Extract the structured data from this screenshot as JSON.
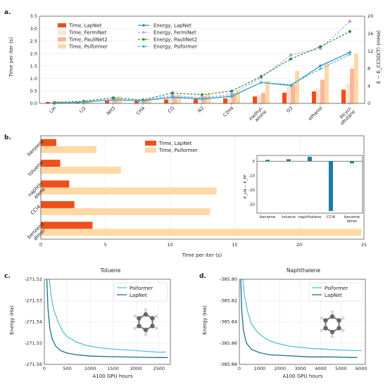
{
  "panel_labels": {
    "a": "a.",
    "b": "b.",
    "c": "c.",
    "d": "d."
  },
  "chart_data": [
    {
      "id": "a",
      "type": "bar",
      "categories": [
        "LiH",
        "Li2",
        "NH3",
        "CH4",
        "CO",
        "N2",
        "C2H4",
        "methyl-\namine",
        "O3",
        "ethanol",
        "bicycl-\nobutane"
      ],
      "ylabel": "Time per iter (s)",
      "ylim": [
        0,
        3.5
      ],
      "yticks": [
        0.0,
        0.5,
        1.0,
        1.5,
        2.0,
        2.5,
        3.0,
        3.5
      ],
      "ylabel_right": "E − E_CCSD(T) (mHa)",
      "ylim_right": [
        0,
        20
      ],
      "yticks_right": [
        0,
        4,
        8,
        12,
        16,
        20
      ],
      "grid": true,
      "bar_series": [
        {
          "name": "Time, LapNet",
          "color": "#ef4f1a",
          "values": [
            0.06,
            0.07,
            0.13,
            0.1,
            0.16,
            0.17,
            0.2,
            0.28,
            0.43,
            0.48,
            0.55
          ]
        },
        {
          "name": "Time, FermiNet",
          "color": "#fde4d6",
          "values": [
            0.07,
            0.09,
            0.18,
            0.14,
            0.25,
            0.26,
            0.33,
            0.34,
            0.68,
            0.6,
            0.8
          ]
        },
        {
          "name": "Time, PauliNet2",
          "color": "#f8b79d",
          "values": [
            0.08,
            0.1,
            0.22,
            0.16,
            0.28,
            0.29,
            0.4,
            0.42,
            0.75,
            0.95,
            1.4
          ]
        },
        {
          "name": "Time, Psiformer",
          "color": "#fed9a6",
          "values": [
            0.1,
            0.13,
            0.28,
            0.2,
            0.36,
            0.38,
            0.47,
            0.9,
            1.3,
            1.62,
            2.0
          ]
        }
      ],
      "line_series": [
        {
          "name": "Energy, LapNet",
          "color": "#2e87c8",
          "style": "solid",
          "marker": "star",
          "values": [
            0.1,
            0.3,
            0.8,
            0.6,
            1.4,
            1.0,
            1.6,
            4.8,
            4.1,
            8.6,
            11.7
          ]
        },
        {
          "name": "Energy, FermiNet",
          "color": "#b7a6dd",
          "style": "dashed",
          "marker": "square",
          "values": [
            0.1,
            0.4,
            0.9,
            0.7,
            1.8,
            1.3,
            2.1,
            5.9,
            11.1,
            12.6,
            18.8
          ]
        },
        {
          "name": "Energy, PauliNet2",
          "color": "#2c8a3a",
          "style": "dashed",
          "marker": "circle",
          "values": [
            0.2,
            0.5,
            1.3,
            0.8,
            2.4,
            2.0,
            2.8,
            6.2,
            10.2,
            13.0,
            16.5
          ]
        },
        {
          "name": "Energy, Psiformer",
          "color": "#3eb5d6",
          "style": "dashed",
          "marker": "dot",
          "values": [
            0.1,
            0.3,
            0.8,
            0.6,
            1.5,
            1.1,
            1.7,
            4.8,
            4.3,
            7.9,
            11.2
          ]
        }
      ],
      "legend": "top-left"
    },
    {
      "id": "b",
      "type": "bar",
      "orientation": "horizontal",
      "categories": [
        "benzene",
        "toluene",
        "naphth-\nalene",
        "CCl4",
        "benzene\ndimer"
      ],
      "xlabel": "Time per iter (s)",
      "xlim": [
        0,
        25
      ],
      "xticks": [
        0,
        5,
        10,
        15,
        20,
        25
      ],
      "grid": true,
      "series": [
        {
          "name": "Time, LapNet",
          "color": "#ef4f1a",
          "values": [
            1.2,
            1.5,
            2.2,
            2.6,
            4.0
          ]
        },
        {
          "name": "Time, Psiformer",
          "color": "#fed9a6",
          "values": [
            4.3,
            6.2,
            13.6,
            13.1,
            24.8
          ]
        }
      ],
      "legend": "top-center"
    },
    {
      "id": "b-inset",
      "type": "bar",
      "categories": [
        "benzene",
        "toluene",
        "naphthalene",
        "CCl4",
        "benzene\ndimer"
      ],
      "ylabel": "E_LN − E_PF",
      "ylim": [
        -36,
        4
      ],
      "yticks": [
        0,
        -10,
        -20,
        -30
      ],
      "color": "#1e7ba3",
      "values": [
        1.0,
        1.4,
        3.1,
        -34.5,
        -1.4
      ]
    },
    {
      "id": "c",
      "type": "line",
      "title": "Toluene",
      "xlabel": "A100 GPU hours",
      "ylabel": "Energy (Ha)",
      "xlim": [
        0,
        2750
      ],
      "xticks": [
        0,
        500,
        1000,
        1500,
        2000,
        2500
      ],
      "ylim": [
        -271.56,
        -271.52
      ],
      "yticks": [
        -271.52,
        -271.53,
        -271.54,
        -271.55,
        -271.56
      ],
      "grid": true,
      "legend": "top-right",
      "series": [
        {
          "name": "Psiformer",
          "color": "#52c3d6",
          "x": [
            100,
            150,
            200,
            300,
            400,
            500,
            700,
            900,
            1200,
            1500,
            2000,
            2500,
            2650
          ],
          "y": [
            -271.518,
            -271.528,
            -271.534,
            -271.54,
            -271.5445,
            -271.547,
            -271.5495,
            -271.551,
            -271.5522,
            -271.5528,
            -271.5535,
            -271.5543,
            -271.5542
          ]
        },
        {
          "name": "LapNet",
          "color": "#1c6f86",
          "x": [
            50,
            80,
            120,
            170,
            250,
            350,
            500,
            700,
            1000,
            1500,
            2000,
            2500,
            2700
          ],
          "y": [
            -271.518,
            -271.534,
            -271.543,
            -271.548,
            -271.5515,
            -271.5535,
            -271.5547,
            -271.5555,
            -271.5561,
            -271.5564,
            -271.5566,
            -271.5568,
            -271.5568
          ]
        }
      ]
    },
    {
      "id": "d",
      "type": "line",
      "title": "Naphthalene",
      "xlabel": "A100 GPU hours",
      "ylabel": "Energy (Ha)",
      "xlim": [
        0,
        6200
      ],
      "xticks": [
        0,
        1000,
        2000,
        3000,
        4000,
        5000,
        6000
      ],
      "ylim": [
        -385.88,
        -385.8
      ],
      "yticks": [
        -385.8,
        -385.82,
        -385.84,
        -385.86,
        -385.88
      ],
      "grid": true,
      "legend": "top-right",
      "series": [
        {
          "name": "Psiformer",
          "color": "#52c3d6",
          "x": [
            150,
            250,
            400,
            600,
            900,
            1300,
            1800,
            2500,
            3500,
            4500,
            5500,
            6000
          ],
          "y": [
            -385.795,
            -385.815,
            -385.83,
            -385.842,
            -385.85,
            -385.856,
            -385.86,
            -385.863,
            -385.865,
            -385.866,
            -385.867,
            -385.867
          ]
        },
        {
          "name": "LapNet",
          "color": "#1c6f86",
          "x": [
            60,
            120,
            200,
            350,
            600,
            1000,
            1500,
            2500,
            3500,
            4500,
            5500,
            5800
          ],
          "y": [
            -385.795,
            -385.83,
            -385.848,
            -385.86,
            -385.866,
            -385.869,
            -385.871,
            -385.872,
            -385.873,
            -385.873,
            -385.8735,
            -385.8735
          ]
        }
      ]
    }
  ]
}
